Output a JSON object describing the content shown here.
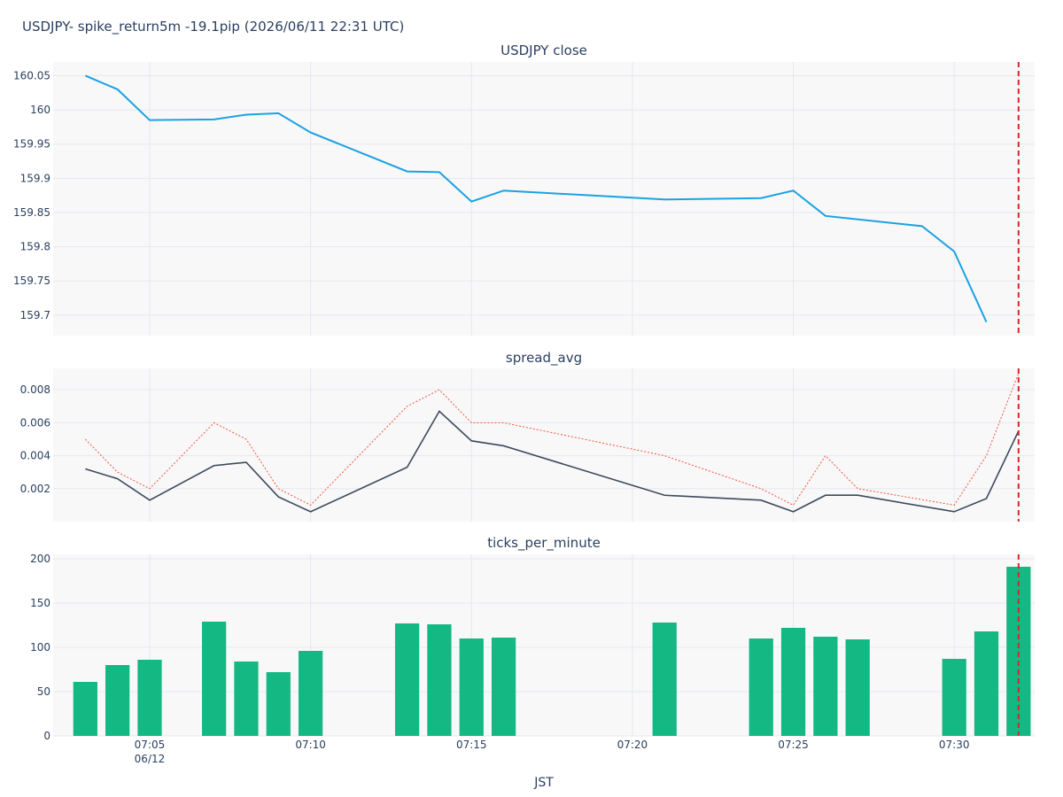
{
  "title": "USDJPY- spike_return5m -19.1pip (2026/06/11 22:31 UTC)",
  "xlabel": "JST",
  "x_ticks": [
    {
      "t": "07:05",
      "date": "06/12"
    },
    {
      "t": "07:10",
      "date": ""
    },
    {
      "t": "07:15",
      "date": ""
    },
    {
      "t": "07:20",
      "date": ""
    },
    {
      "t": "07:25",
      "date": ""
    },
    {
      "t": "07:30",
      "date": ""
    }
  ],
  "colors": {
    "close": "#1ba1e2",
    "spread": "#3d4a5c",
    "spread_max": "#ef553b",
    "ticks": "#13b883",
    "event": "#d62728",
    "panel_bg": "#f8f8f9",
    "grid": "#e6e8ee"
  },
  "chart_data": [
    {
      "type": "line",
      "title": "USDJPY close",
      "x": [
        "07:03",
        "07:04",
        "07:05",
        "07:07",
        "07:08",
        "07:09",
        "07:10",
        "07:13",
        "07:14",
        "07:15",
        "07:16",
        "07:21",
        "07:24",
        "07:25",
        "07:26",
        "07:29",
        "07:30",
        "07:31"
      ],
      "series": [
        {
          "values": [
            160.05,
            160.03,
            159.985,
            159.986,
            159.993,
            159.995,
            159.967,
            159.91,
            159.909,
            159.866,
            159.882,
            159.869,
            159.871,
            159.882,
            159.845,
            159.83,
            159.793,
            159.69
          ]
        }
      ],
      "y_ticks": [
        160.05,
        160,
        159.95,
        159.9,
        159.85,
        159.8,
        159.75,
        159.7
      ],
      "y_tick_labels": [
        "160.05",
        "160",
        "159.95",
        "159.9",
        "159.85",
        "159.8",
        "159.75",
        "159.7"
      ],
      "ylim": [
        159.67,
        160.07
      ],
      "grid": true
    },
    {
      "type": "line",
      "title": "spread_avg",
      "x": [
        "07:03",
        "07:04",
        "07:05",
        "07:07",
        "07:08",
        "07:09",
        "07:10",
        "07:13",
        "07:14",
        "07:15",
        "07:16",
        "07:21",
        "07:24",
        "07:25",
        "07:26",
        "07:27",
        "07:30",
        "07:31",
        "07:32"
      ],
      "series": [
        {
          "style": "solid",
          "values": [
            0.0032,
            0.0026,
            0.0013,
            0.0034,
            0.0036,
            0.0015,
            0.0006,
            0.0033,
            0.0067,
            0.0049,
            0.0046,
            0.0016,
            0.0013,
            0.0006,
            0.0016,
            0.0016,
            0.0006,
            0.0014,
            0.0055
          ]
        },
        {
          "style": "dotted",
          "values": [
            0.005,
            0.003,
            0.002,
            0.006,
            0.005,
            0.002,
            0.001,
            0.007,
            0.008,
            0.006,
            0.006,
            0.004,
            0.002,
            0.001,
            0.004,
            0.002,
            0.001,
            0.004,
            0.009
          ]
        }
      ],
      "y_ticks": [
        0.002,
        0.004,
        0.006,
        0.008
      ],
      "y_tick_labels": [
        "0.002",
        "0.004",
        "0.006",
        "0.008"
      ],
      "ylim": [
        0,
        0.0093
      ],
      "grid": true
    },
    {
      "type": "bar",
      "title": "ticks_per_minute",
      "x": [
        "07:03",
        "07:04",
        "07:05",
        "07:07",
        "07:08",
        "07:09",
        "07:10",
        "07:13",
        "07:14",
        "07:15",
        "07:16",
        "07:21",
        "07:24",
        "07:25",
        "07:26",
        "07:27",
        "07:30",
        "07:31",
        "07:32"
      ],
      "values": [
        61,
        80,
        86,
        129,
        84,
        72,
        96,
        127,
        126,
        110,
        111,
        128,
        110,
        122,
        112,
        109,
        87,
        118,
        191
      ],
      "y_ticks": [
        0,
        50,
        100,
        150,
        200
      ],
      "y_tick_labels": [
        "0",
        "50",
        "100",
        "150",
        "200"
      ],
      "ylim": [
        0,
        205
      ],
      "grid": true
    }
  ],
  "event_marker": {
    "x": "07:32",
    "style": "dashed",
    "label": ""
  }
}
